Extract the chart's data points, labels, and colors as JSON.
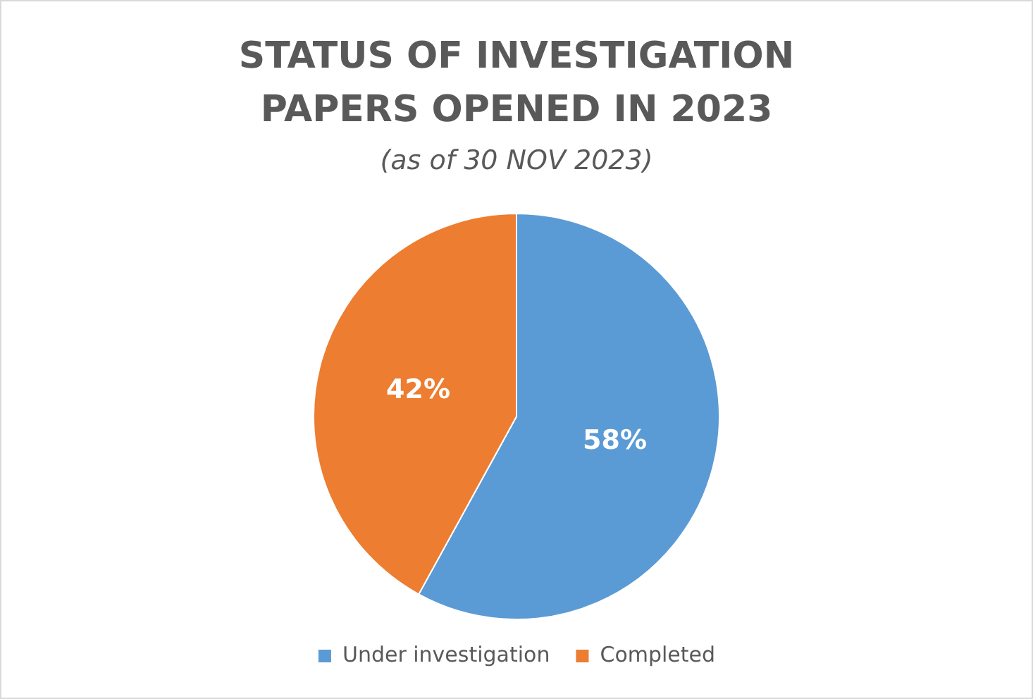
{
  "chart_data": {
    "type": "pie",
    "title": "STATUS OF INVESTIGATION PAPERS OPENED IN 2023",
    "subtitle": "(as of 30 NOV 2023)",
    "categories": [
      "Under investigation",
      "Completed"
    ],
    "values": [
      58,
      42
    ],
    "colors": [
      "#5b9bd5",
      "#ed7d31"
    ],
    "value_labels": [
      "58%",
      "42%"
    ],
    "legend": "bottom"
  }
}
